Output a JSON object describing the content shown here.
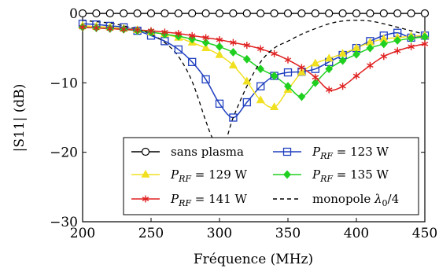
{
  "chart_data": {
    "type": "line",
    "xlabel": "Fréquence (MHz)",
    "ylabel": "|S11| (dB)",
    "xlim": [
      200,
      450
    ],
    "ylim": [
      -30,
      0
    ],
    "xticks": [
      200,
      250,
      300,
      350,
      400,
      450
    ],
    "yticks": [
      0,
      -10,
      -20,
      -30
    ],
    "xtick_labels": [
      "200",
      "250",
      "300",
      "350",
      "400",
      "450"
    ],
    "ytick_labels": [
      "0",
      "−10",
      "−20",
      "−30"
    ],
    "grid": false,
    "legend_position": "bottom-right",
    "series": [
      {
        "name": "sans plasma",
        "color": "#000000",
        "marker": "circle-open",
        "dash": "solid",
        "x": [
          200,
          210,
          220,
          230,
          240,
          250,
          260,
          270,
          280,
          290,
          300,
          310,
          320,
          330,
          340,
          350,
          360,
          370,
          380,
          390,
          400,
          410,
          420,
          430,
          440,
          450
        ],
        "y": [
          0,
          0,
          0,
          0,
          0,
          0,
          0,
          0,
          0,
          0,
          0,
          0,
          0,
          0,
          0,
          0,
          0,
          0,
          0,
          0,
          0,
          0,
          0,
          0,
          0,
          0
        ]
      },
      {
        "name_parts": {
          "base": "P",
          "sub": "RF",
          "value": " = 123 W"
        },
        "color": "#1f3fbf",
        "marker": "square-open",
        "dash": "solid",
        "x": [
          200,
          210,
          220,
          230,
          240,
          250,
          260,
          270,
          280,
          290,
          300,
          310,
          320,
          330,
          340,
          350,
          360,
          370,
          380,
          390,
          400,
          410,
          420,
          430,
          440,
          450
        ],
        "y": [
          -1.5,
          -1.6,
          -1.8,
          -2.0,
          -2.5,
          -3.2,
          -4.0,
          -5.2,
          -7.0,
          -9.5,
          -13.0,
          -15.0,
          -12.8,
          -10.5,
          -9.0,
          -8.5,
          -8.4,
          -8.0,
          -7.0,
          -6.0,
          -5.0,
          -4.0,
          -3.2,
          -2.8,
          -3.5,
          -3.2
        ]
      },
      {
        "name_parts": {
          "base": "P",
          "sub": "RF",
          "value": " = 129 W"
        },
        "color": "#f0e020",
        "marker": "triangle",
        "dash": "solid",
        "x": [
          200,
          210,
          220,
          230,
          240,
          250,
          260,
          270,
          280,
          290,
          300,
          310,
          320,
          330,
          340,
          350,
          360,
          370,
          380,
          390,
          400,
          410,
          420,
          430,
          440,
          450
        ],
        "y": [
          -1.8,
          -1.9,
          -2.0,
          -2.2,
          -2.4,
          -2.7,
          -3.0,
          -3.5,
          -4.2,
          -5.0,
          -6.0,
          -7.5,
          -9.8,
          -12.5,
          -13.5,
          -11.0,
          -8.5,
          -7.2,
          -6.5,
          -5.8,
          -5.0,
          -4.2,
          -3.7,
          -3.5,
          -3.3,
          -3.2
        ]
      },
      {
        "name_parts": {
          "base": "P",
          "sub": "RF",
          "value": " = 135 W"
        },
        "color": "#20d020",
        "marker": "diamond",
        "dash": "solid",
        "x": [
          200,
          210,
          220,
          230,
          240,
          250,
          260,
          270,
          280,
          290,
          300,
          310,
          320,
          330,
          340,
          350,
          360,
          370,
          380,
          390,
          400,
          410,
          420,
          430,
          440,
          450
        ],
        "y": [
          -2.0,
          -2.1,
          -2.2,
          -2.3,
          -2.5,
          -2.7,
          -3.0,
          -3.3,
          -3.7,
          -4.2,
          -4.8,
          -5.6,
          -6.6,
          -8.0,
          -9.0,
          -10.5,
          -12.0,
          -10.0,
          -8.0,
          -6.8,
          -5.9,
          -5.0,
          -4.4,
          -3.9,
          -3.6,
          -3.4
        ]
      },
      {
        "name_parts": {
          "base": "P",
          "sub": "RF",
          "value": " = 141 W"
        },
        "color": "#e02020",
        "marker": "star",
        "dash": "solid",
        "x": [
          200,
          210,
          220,
          230,
          240,
          250,
          260,
          270,
          280,
          290,
          300,
          310,
          320,
          330,
          340,
          350,
          360,
          370,
          380,
          390,
          400,
          410,
          420,
          430,
          440,
          450
        ],
        "y": [
          -2.0,
          -2.1,
          -2.2,
          -2.3,
          -2.4,
          -2.5,
          -2.7,
          -2.9,
          -3.2,
          -3.5,
          -3.8,
          -4.2,
          -4.6,
          -5.1,
          -5.8,
          -6.7,
          -7.8,
          -9.2,
          -11.0,
          -10.5,
          -9.0,
          -7.5,
          -6.2,
          -5.4,
          -4.8,
          -4.4
        ]
      },
      {
        "name_parts": {
          "base": "monopole ",
          "sym": "λ",
          "sub": "0",
          "value": "/4"
        },
        "color": "#000000",
        "marker": "none",
        "dash": "dashed",
        "x": [
          200,
          210,
          220,
          230,
          240,
          250,
          260,
          270,
          280,
          290,
          295,
          300,
          305,
          310,
          320,
          330,
          340,
          350,
          360,
          370,
          380,
          390,
          400,
          410,
          420,
          430,
          440,
          450
        ],
        "y": [
          -1.0,
          -1.2,
          -1.4,
          -1.8,
          -2.3,
          -3.0,
          -4.2,
          -6.2,
          -9.8,
          -15.5,
          -18.0,
          -19.0,
          -18.0,
          -15.0,
          -10.5,
          -7.0,
          -5.0,
          -4.0,
          -3.0,
          -2.2,
          -1.5,
          -1.1,
          -1.0,
          -1.1,
          -1.5,
          -2.0,
          -2.5,
          -3.0
        ]
      }
    ]
  }
}
